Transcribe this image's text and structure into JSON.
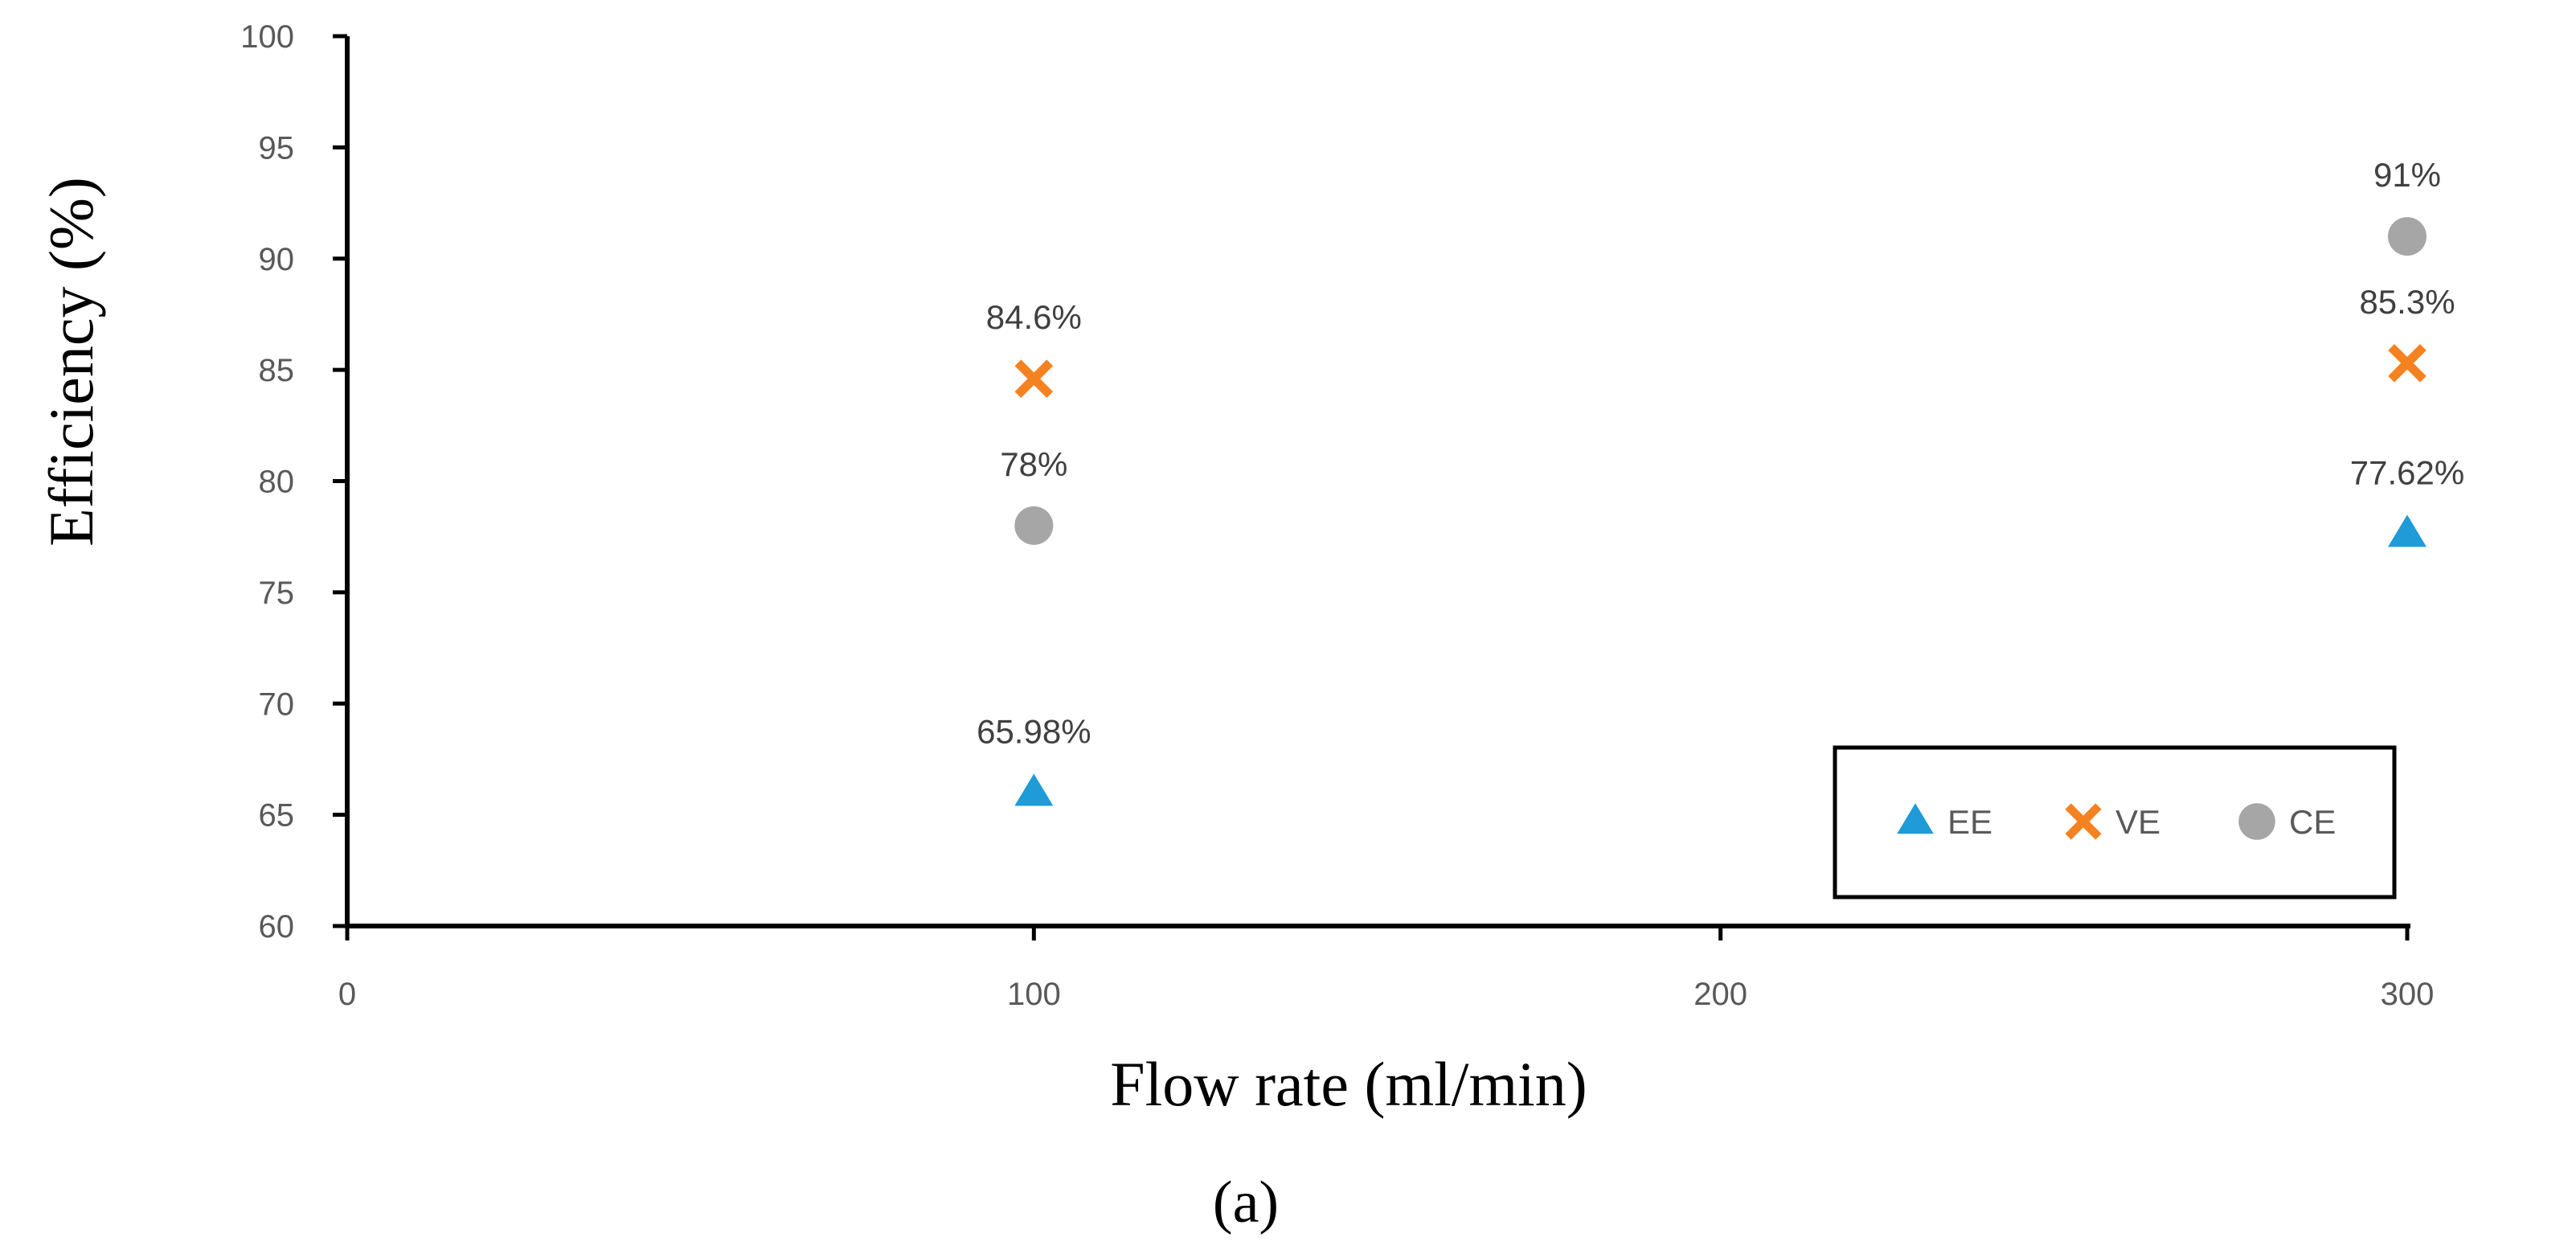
{
  "chart_data": {
    "type": "scatter",
    "xlabel": "Flow rate (ml/min)",
    "ylabel": "Efficiency (%)",
    "panel_label": "(a)",
    "xlim": [
      0,
      300
    ],
    "ylim": [
      60,
      100
    ],
    "x_ticks": [
      0,
      100,
      200,
      300
    ],
    "y_ticks": [
      60,
      65,
      70,
      75,
      80,
      85,
      90,
      95,
      100
    ],
    "grid": false,
    "legend_position": "bottom-right",
    "series": [
      {
        "name": "EE",
        "marker": "triangle",
        "color": "#1F9BD7",
        "points": [
          {
            "x": 100,
            "y": 65.98,
            "label": "65.98%"
          },
          {
            "x": 300,
            "y": 77.62,
            "label": "77.62%"
          }
        ]
      },
      {
        "name": "VE",
        "marker": "cross",
        "color": "#F58220",
        "points": [
          {
            "x": 100,
            "y": 84.6,
            "label": "84.6%"
          },
          {
            "x": 300,
            "y": 85.3,
            "label": "85.3%"
          }
        ]
      },
      {
        "name": "CE",
        "marker": "circle",
        "color": "#A6A6A6",
        "points": [
          {
            "x": 100,
            "y": 78,
            "label": "78%"
          },
          {
            "x": 300,
            "y": 91,
            "label": "91%"
          }
        ]
      }
    ]
  }
}
